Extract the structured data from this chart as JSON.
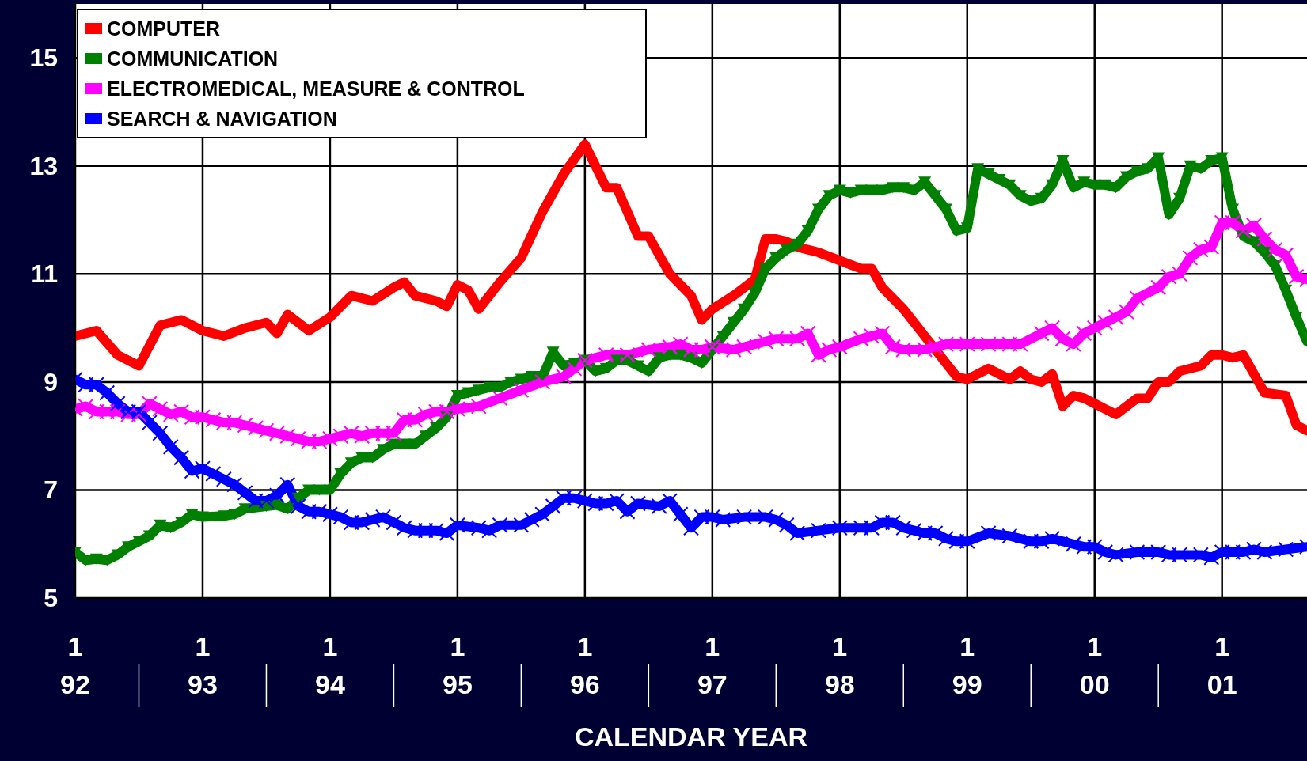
{
  "chart_data": {
    "type": "line",
    "xlabel": "CALENDAR YEAR",
    "xlim": [
      "1992-01",
      "2001-09"
    ],
    "xticks": [
      {
        "value": "1992-01",
        "label": "1\n92"
      },
      {
        "value": "1993-01",
        "label": "1\n93"
      },
      {
        "value": "1994-01",
        "label": "1\n94"
      },
      {
        "value": "1995-01",
        "label": "1\n95"
      },
      {
        "value": "1996-01",
        "label": "1\n96"
      },
      {
        "value": "1997-01",
        "label": "1\n97"
      },
      {
        "value": "1998-01",
        "label": "1\n98"
      },
      {
        "value": "1999-01",
        "label": "1\n99"
      },
      {
        "value": "2000-01",
        "label": "1\n00"
      },
      {
        "value": "2001-01",
        "label": "1\n01"
      }
    ],
    "ylim": [
      5,
      16
    ],
    "yticks": [
      5,
      7,
      9,
      11,
      13,
      15
    ],
    "grid": true,
    "legend": "top left",
    "series": [
      {
        "name": "COMPUTER",
        "color": "#ff0000",
        "marker": "none",
        "x": [
          "1992-01",
          "1992-03",
          "1992-05",
          "1992-07",
          "1992-09",
          "1992-11",
          "1993-01",
          "1993-03",
          "1993-05",
          "1993-07",
          "1993-08",
          "1993-09",
          "1993-11",
          "1994-01",
          "1994-03",
          "1994-05",
          "1994-07",
          "1994-08",
          "1994-09",
          "1994-11",
          "1994-12",
          "1995-01",
          "1995-02",
          "1995-03",
          "1995-05",
          "1995-07",
          "1995-09",
          "1995-11",
          "1996-01",
          "1996-03",
          "1996-04",
          "1996-05",
          "1996-06",
          "1996-07",
          "1996-09",
          "1996-11",
          "1996-12",
          "1997-01",
          "1997-03",
          "1997-05",
          "1997-06",
          "1997-07",
          "1997-08",
          "1997-09",
          "1997-11",
          "1998-01",
          "1998-03",
          "1998-04",
          "1998-05",
          "1998-07",
          "1998-09",
          "1998-11",
          "1998-12",
          "1999-01",
          "1999-03",
          "1999-05",
          "1999-06",
          "1999-07",
          "1999-08",
          "1999-09",
          "1999-10",
          "1999-11",
          "1999-12",
          "2000-01",
          "2000-03",
          "2000-05",
          "2000-06",
          "2000-07",
          "2000-08",
          "2000-09",
          "2000-11",
          "2000-12",
          "2001-01",
          "2001-02",
          "2001-03",
          "2001-04",
          "2001-05",
          "2001-07",
          "2001-08",
          "2001-09"
        ],
        "values": [
          9.85,
          9.95,
          9.5,
          9.3,
          10.05,
          10.15,
          9.95,
          9.85,
          10.0,
          10.1,
          9.9,
          10.25,
          9.95,
          10.2,
          10.6,
          10.5,
          10.75,
          10.85,
          10.6,
          10.5,
          10.4,
          10.8,
          10.7,
          10.35,
          10.85,
          11.3,
          12.15,
          12.85,
          13.4,
          12.6,
          12.6,
          12.15,
          11.7,
          11.7,
          11.0,
          10.6,
          10.15,
          10.35,
          10.6,
          10.9,
          11.65,
          11.65,
          11.6,
          11.5,
          11.4,
          11.25,
          11.1,
          11.1,
          10.75,
          10.35,
          9.85,
          9.35,
          9.1,
          9.05,
          9.25,
          9.05,
          9.2,
          9.05,
          9.0,
          9.15,
          8.55,
          8.75,
          8.7,
          8.6,
          8.4,
          8.7,
          8.7,
          9.0,
          9.0,
          9.2,
          9.3,
          9.5,
          9.5,
          9.45,
          9.5,
          9.15,
          8.8,
          8.75,
          8.2,
          8.1
        ]
      },
      {
        "name": "COMMUNICATION",
        "color": "#008000",
        "marker": "triangle",
        "x": [
          "1992-01",
          "1992-02",
          "1992-03",
          "1992-04",
          "1992-05",
          "1992-06",
          "1992-07",
          "1992-08",
          "1992-09",
          "1992-10",
          "1992-11",
          "1992-12",
          "1993-01",
          "1993-03",
          "1993-04",
          "1993-05",
          "1993-07",
          "1993-08",
          "1993-09",
          "1993-10",
          "1993-11",
          "1993-12",
          "1994-01",
          "1994-02",
          "1994-03",
          "1994-04",
          "1994-05",
          "1994-06",
          "1994-07",
          "1994-08",
          "1994-09",
          "1994-10",
          "1994-11",
          "1994-12",
          "1995-01",
          "1995-02",
          "1995-03",
          "1995-04",
          "1995-05",
          "1995-06",
          "1995-07",
          "1995-08",
          "1995-09",
          "1995-10",
          "1995-11",
          "1995-12",
          "1996-01",
          "1996-02",
          "1996-03",
          "1996-04",
          "1996-05",
          "1996-06",
          "1996-07",
          "1996-08",
          "1996-09",
          "1996-10",
          "1996-11",
          "1996-12",
          "1997-01",
          "1997-02",
          "1997-03",
          "1997-04",
          "1997-05",
          "1997-06",
          "1997-07",
          "1997-08",
          "1997-09",
          "1997-10",
          "1997-11",
          "1997-12",
          "1998-01",
          "1998-02",
          "1998-03",
          "1998-04",
          "1998-05",
          "1998-06",
          "1998-07",
          "1998-08",
          "1998-09",
          "1998-10",
          "1998-11",
          "1998-12",
          "1999-01",
          "1999-02",
          "1999-03",
          "1999-04",
          "1999-05",
          "1999-06",
          "1999-07",
          "1999-08",
          "1999-09",
          "1999-10",
          "1999-11",
          "1999-12",
          "2000-01",
          "2000-02",
          "2000-03",
          "2000-04",
          "2000-05",
          "2000-06",
          "2000-07",
          "2000-08",
          "2000-09",
          "2000-10",
          "2000-11",
          "2000-12",
          "2001-01",
          "2001-02",
          "2001-03",
          "2001-04",
          "2001-05",
          "2001-06",
          "2001-07",
          "2001-08",
          "2001-09"
        ],
        "values": [
          5.85,
          5.7,
          5.72,
          5.7,
          5.8,
          5.95,
          6.05,
          6.15,
          6.35,
          6.3,
          6.4,
          6.55,
          6.5,
          6.52,
          6.55,
          6.65,
          6.7,
          6.72,
          6.65,
          6.85,
          7.0,
          7.0,
          7.0,
          7.3,
          7.5,
          7.6,
          7.6,
          7.75,
          7.85,
          7.85,
          7.85,
          8.0,
          8.15,
          8.35,
          8.75,
          8.8,
          8.85,
          8.9,
          8.9,
          9.0,
          9.05,
          9.1,
          9.1,
          9.55,
          9.3,
          9.35,
          9.4,
          9.2,
          9.25,
          9.4,
          9.4,
          9.3,
          9.2,
          9.45,
          9.5,
          9.5,
          9.45,
          9.35,
          9.6,
          9.85,
          10.1,
          10.35,
          10.65,
          11.1,
          11.3,
          11.45,
          11.55,
          11.8,
          12.2,
          12.45,
          12.55,
          12.5,
          12.55,
          12.55,
          12.55,
          12.6,
          12.6,
          12.55,
          12.7,
          12.45,
          12.2,
          11.8,
          11.85,
          12.95,
          12.85,
          12.75,
          12.65,
          12.45,
          12.35,
          12.4,
          12.65,
          13.1,
          12.6,
          12.7,
          12.65,
          12.65,
          12.6,
          12.8,
          12.9,
          12.95,
          13.15,
          12.1,
          12.4,
          13.0,
          12.95,
          13.1,
          13.15,
          12.2,
          11.7,
          11.6,
          11.4,
          11.15,
          10.7,
          10.2,
          9.75
        ]
      },
      {
        "name": "ELECTROMEDICAL, MEASURE & CONTROL",
        "color": "#ff00ff",
        "marker": "cross",
        "x": [
          "1992-01",
          "1992-02",
          "1992-03",
          "1992-04",
          "1992-05",
          "1992-06",
          "1992-07",
          "1992-08",
          "1992-09",
          "1992-10",
          "1992-11",
          "1992-12",
          "1993-01",
          "1993-02",
          "1993-03",
          "1993-04",
          "1993-05",
          "1993-06",
          "1993-07",
          "1993-08",
          "1993-09",
          "1993-10",
          "1993-11",
          "1993-12",
          "1994-01",
          "1994-02",
          "1994-03",
          "1994-04",
          "1994-05",
          "1994-06",
          "1994-07",
          "1994-08",
          "1994-09",
          "1994-10",
          "1994-11",
          "1994-12",
          "1995-01",
          "1995-03",
          "1995-05",
          "1995-07",
          "1995-09",
          "1995-11",
          "1995-12",
          "1996-01",
          "1996-03",
          "1996-05",
          "1996-07",
          "1996-09",
          "1996-10",
          "1996-11",
          "1996-12",
          "1997-01",
          "1997-03",
          "1997-04",
          "1997-06",
          "1997-07",
          "1997-09",
          "1997-10",
          "1997-11",
          "1997-12",
          "1998-01",
          "1998-03",
          "1998-04",
          "1998-05",
          "1998-06",
          "1998-07",
          "1998-09",
          "1998-10",
          "1998-11",
          "1999-01",
          "1999-03",
          "1999-05",
          "1999-06",
          "1999-08",
          "1999-09",
          "1999-10",
          "1999-11",
          "1999-12",
          "2000-01",
          "2000-02",
          "2000-03",
          "2000-04",
          "2000-05",
          "2000-07",
          "2000-08",
          "2000-09",
          "2000-10",
          "2000-11",
          "2000-12",
          "2001-01",
          "2001-02",
          "2001-03",
          "2001-04",
          "2001-05",
          "2001-06",
          "2001-07",
          "2001-08",
          "2001-09"
        ],
        "values": [
          8.5,
          8.55,
          8.45,
          8.45,
          8.45,
          8.4,
          8.4,
          8.6,
          8.5,
          8.4,
          8.45,
          8.35,
          8.35,
          8.3,
          8.25,
          8.25,
          8.2,
          8.15,
          8.1,
          8.05,
          8.0,
          7.95,
          7.9,
          7.9,
          7.95,
          8.0,
          8.05,
          8.0,
          8.05,
          8.05,
          8.05,
          8.3,
          8.3,
          8.4,
          8.45,
          8.45,
          8.5,
          8.55,
          8.7,
          8.85,
          9.0,
          9.1,
          9.25,
          9.4,
          9.5,
          9.5,
          9.6,
          9.65,
          9.7,
          9.6,
          9.6,
          9.65,
          9.6,
          9.65,
          9.75,
          9.8,
          9.8,
          9.9,
          9.5,
          9.6,
          9.65,
          9.8,
          9.85,
          9.9,
          9.65,
          9.6,
          9.6,
          9.65,
          9.7,
          9.7,
          9.7,
          9.7,
          9.7,
          9.9,
          10.0,
          9.8,
          9.7,
          9.9,
          10.0,
          10.1,
          10.2,
          10.3,
          10.55,
          10.75,
          10.95,
          11.0,
          11.3,
          11.45,
          11.5,
          11.95,
          11.95,
          11.8,
          11.9,
          11.65,
          11.45,
          11.35,
          10.95,
          10.9
        ]
      },
      {
        "name": "SEARCH & NAVIGATION",
        "color": "#0000ff",
        "marker": "cross",
        "x": [
          "1992-01",
          "1992-02",
          "1992-03",
          "1992-04",
          "1992-05",
          "1992-06",
          "1992-07",
          "1992-08",
          "1992-09",
          "1992-10",
          "1992-11",
          "1992-12",
          "1993-01",
          "1993-02",
          "1993-03",
          "1993-04",
          "1993-05",
          "1993-06",
          "1993-07",
          "1993-08",
          "1993-09",
          "1993-10",
          "1993-11",
          "1993-12",
          "1994-01",
          "1994-02",
          "1994-03",
          "1994-04",
          "1994-05",
          "1994-06",
          "1994-07",
          "1994-08",
          "1994-09",
          "1994-10",
          "1994-11",
          "1994-12",
          "1995-01",
          "1995-03",
          "1995-04",
          "1995-05",
          "1995-07",
          "1995-08",
          "1995-09",
          "1995-10",
          "1995-11",
          "1995-12",
          "1996-01",
          "1996-02",
          "1996-03",
          "1996-04",
          "1996-05",
          "1996-06",
          "1996-08",
          "1996-09",
          "1996-10",
          "1996-11",
          "1996-12",
          "1997-01",
          "1997-02",
          "1997-04",
          "1997-06",
          "1997-07",
          "1997-08",
          "1997-09",
          "1997-11",
          "1998-01",
          "1998-03",
          "1998-04",
          "1998-05",
          "1998-06",
          "1998-07",
          "1998-08",
          "1998-09",
          "1998-10",
          "1998-11",
          "1998-12",
          "1999-01",
          "1999-03",
          "1999-05",
          "1999-07",
          "1999-08",
          "1999-09",
          "1999-11",
          "1999-12",
          "2000-01",
          "2000-02",
          "2000-03",
          "2000-05",
          "2000-07",
          "2000-08",
          "2000-09",
          "2000-11",
          "2000-12",
          "2001-01",
          "2001-02",
          "2001-03",
          "2001-04",
          "2001-05",
          "2001-07",
          "2001-09"
        ],
        "values": [
          9.05,
          8.95,
          8.95,
          8.8,
          8.6,
          8.45,
          8.45,
          8.25,
          8.05,
          7.8,
          7.6,
          7.35,
          7.4,
          7.3,
          7.2,
          7.1,
          6.95,
          6.8,
          6.8,
          6.9,
          7.1,
          6.7,
          6.6,
          6.6,
          6.55,
          6.5,
          6.4,
          6.4,
          6.45,
          6.5,
          6.4,
          6.3,
          6.25,
          6.25,
          6.25,
          6.2,
          6.35,
          6.3,
          6.25,
          6.35,
          6.35,
          6.45,
          6.55,
          6.7,
          6.85,
          6.85,
          6.8,
          6.75,
          6.75,
          6.8,
          6.6,
          6.75,
          6.7,
          6.8,
          6.55,
          6.3,
          6.5,
          6.5,
          6.45,
          6.5,
          6.5,
          6.45,
          6.35,
          6.2,
          6.25,
          6.3,
          6.3,
          6.3,
          6.4,
          6.4,
          6.3,
          6.25,
          6.2,
          6.2,
          6.1,
          6.05,
          6.05,
          6.2,
          6.15,
          6.05,
          6.05,
          6.1,
          6.0,
          5.95,
          5.95,
          5.85,
          5.8,
          5.85,
          5.85,
          5.8,
          5.8,
          5.8,
          5.75,
          5.85,
          5.85,
          5.85,
          5.9,
          5.85,
          5.9,
          5.95
        ]
      }
    ]
  }
}
